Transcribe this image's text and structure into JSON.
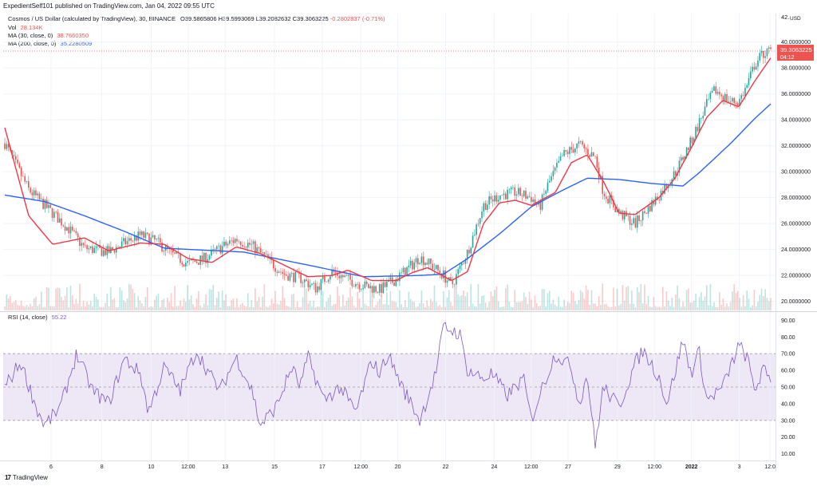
{
  "header": "ExpedientSelf101 published on TradingView.com, Jan 04, 2022 09:55 UTC",
  "legend": {
    "symbol": "Cosmos / US Dollar (calculated by TradingView), 30, BINANCE",
    "open": "O39.5865806",
    "high": "H39.5993069",
    "low": "L39.2082632",
    "close": "C39.3063225",
    "change": "-0.2802837 (-0.71%)",
    "vol_label": "Vol",
    "vol_value": "28.134K",
    "ma30_label": "MA (30, close, 0)",
    "ma30_value": "38.7660350",
    "ma200_label": "MA (200, close, 0)",
    "ma200_value": "35.2280509",
    "rsi_label": "RSI (14, close)",
    "rsi_value": "55.22"
  },
  "price_axis": {
    "currency": "USD",
    "top_label": "42.",
    "current_price": "39.3063225",
    "countdown": "04:12"
  },
  "brand": "TradingView",
  "colors": {
    "up": "#26a69a",
    "down": "#ef5350",
    "ma30": "#f23645",
    "ma200": "#2962ff",
    "rsi": "#7e57c2",
    "rsi_band": "#ede7f6"
  },
  "chart_data": [
    {
      "type": "candlestick",
      "title": "",
      "x_ticks": [
        "6",
        "8",
        "10",
        "12:00",
        "13",
        "15",
        "17",
        "12:00",
        "20",
        "22",
        "24",
        "12:00",
        "27",
        "29",
        "12:00",
        "2022",
        "3",
        "12:0"
      ],
      "y_ticks": [
        "40.0000000",
        "38.0000000",
        "36.0000000",
        "34.0000000",
        "32.0000000",
        "30.0000000",
        "28.0000000",
        "26.0000000",
        "24.0000000",
        "22.0000000",
        "20.0000000"
      ],
      "ylim": [
        19.3,
        42.2
      ],
      "price_keypoints": [
        [
          0,
          32.2
        ],
        [
          3,
          28.6
        ],
        [
          6,
          26.8
        ],
        [
          8,
          25.6
        ],
        [
          10,
          24.1
        ],
        [
          13,
          23.8
        ],
        [
          15,
          24.5
        ],
        [
          17,
          25.1
        ],
        [
          19,
          24.6
        ],
        [
          21,
          23.6
        ],
        [
          23,
          22.9
        ],
        [
          25,
          23.3
        ],
        [
          27,
          24.1
        ],
        [
          29,
          24.8
        ],
        [
          31,
          24.3
        ],
        [
          33,
          23.2
        ],
        [
          35,
          22.1
        ],
        [
          37,
          21.8
        ],
        [
          39,
          21.0
        ],
        [
          41,
          22.3
        ],
        [
          43,
          21.7
        ],
        [
          45,
          21.2
        ],
        [
          47,
          20.9
        ],
        [
          49,
          21.7
        ],
        [
          51,
          22.8
        ],
        [
          52,
          23.4
        ],
        [
          53,
          23.0
        ],
        [
          55,
          22.0
        ],
        [
          56,
          21.2
        ],
        [
          58,
          23.8
        ],
        [
          60,
          27.4
        ],
        [
          62,
          28.2
        ],
        [
          64,
          28.4
        ],
        [
          66,
          28.0
        ],
        [
          67,
          27.2
        ],
        [
          68,
          28.9
        ],
        [
          70,
          31.3
        ],
        [
          72,
          32.1
        ],
        [
          74,
          31.1
        ],
        [
          75,
          28.5
        ],
        [
          77,
          26.8
        ],
        [
          79,
          26.0
        ],
        [
          80,
          26.7
        ],
        [
          82,
          28.2
        ],
        [
          84,
          29.9
        ],
        [
          86,
          32.3
        ],
        [
          88,
          35.2
        ],
        [
          89,
          36.3
        ],
        [
          91,
          35.4
        ],
        [
          92,
          35.4
        ],
        [
          93,
          36.6
        ],
        [
          94,
          38.3
        ],
        [
          95,
          39.1
        ],
        [
          96,
          39.3
        ]
      ],
      "ma30_keypoints": [
        [
          0,
          33.4
        ],
        [
          3,
          26.6
        ],
        [
          6,
          24.4
        ],
        [
          10,
          24.9
        ],
        [
          13,
          23.9
        ],
        [
          17,
          24.5
        ],
        [
          20,
          24.4
        ],
        [
          23,
          23.3
        ],
        [
          26,
          23.0
        ],
        [
          29,
          24.2
        ],
        [
          32,
          23.7
        ],
        [
          35,
          22.8
        ],
        [
          38,
          21.9
        ],
        [
          41,
          22.0
        ],
        [
          43,
          22.4
        ],
        [
          46,
          21.6
        ],
        [
          49,
          21.6
        ],
        [
          51,
          22.2
        ],
        [
          53,
          22.6
        ],
        [
          56,
          21.6
        ],
        [
          58,
          22.3
        ],
        [
          60,
          26.0
        ],
        [
          62,
          27.6
        ],
        [
          64,
          27.8
        ],
        [
          66,
          27.4
        ],
        [
          69,
          28.4
        ],
        [
          71,
          30.7
        ],
        [
          73,
          31.3
        ],
        [
          75,
          29.3
        ],
        [
          77,
          26.8
        ],
        [
          79,
          26.7
        ],
        [
          82,
          28.0
        ],
        [
          84,
          29.5
        ],
        [
          86,
          31.8
        ],
        [
          88,
          34.2
        ],
        [
          90,
          35.5
        ],
        [
          92,
          35.0
        ],
        [
          94,
          37.0
        ],
        [
          96,
          38.77
        ]
      ],
      "ma200_keypoints": [
        [
          0,
          28.2
        ],
        [
          5,
          27.7
        ],
        [
          10,
          26.6
        ],
        [
          15,
          25.4
        ],
        [
          20,
          24.1
        ],
        [
          30,
          23.8
        ],
        [
          38,
          22.8
        ],
        [
          45,
          21.9
        ],
        [
          52,
          22.0
        ],
        [
          55,
          22.1
        ],
        [
          58,
          23.3
        ],
        [
          62,
          25.2
        ],
        [
          66,
          27.3
        ],
        [
          70,
          28.6
        ],
        [
          73,
          29.5
        ],
        [
          77,
          29.4
        ],
        [
          81,
          29.1
        ],
        [
          85,
          28.9
        ],
        [
          87,
          29.9
        ],
        [
          91,
          32.2
        ],
        [
          94,
          34.1
        ],
        [
          96,
          35.23
        ]
      ],
      "volume": "bars",
      "current_price": 39.3063225
    },
    {
      "type": "line",
      "title": "",
      "series": [
        {
          "name": "RSI (14, close)",
          "last": 55.22
        }
      ],
      "y_ticks": [
        "90.00",
        "80.00",
        "70.00",
        "60.00",
        "50.00",
        "40.00",
        "30.00",
        "20.00",
        "10.00"
      ],
      "ylim": [
        6,
        94
      ],
      "bands": [
        30,
        70
      ],
      "midline": 50,
      "rsi_keypoints": [
        [
          0,
          50
        ],
        [
          2,
          65
        ],
        [
          4,
          37
        ],
        [
          5,
          27
        ],
        [
          7,
          38
        ],
        [
          9,
          70
        ],
        [
          11,
          48
        ],
        [
          13,
          40
        ],
        [
          15,
          67
        ],
        [
          17,
          58
        ],
        [
          18,
          35
        ],
        [
          20,
          62
        ],
        [
          22,
          48
        ],
        [
          24,
          72
        ],
        [
          26,
          55
        ],
        [
          27,
          48
        ],
        [
          29,
          68
        ],
        [
          31,
          48
        ],
        [
          32,
          27
        ],
        [
          34,
          38
        ],
        [
          36,
          62
        ],
        [
          37,
          50
        ],
        [
          38,
          68
        ],
        [
          40,
          42
        ],
        [
          42,
          50
        ],
        [
          44,
          35
        ],
        [
          46,
          66
        ],
        [
          47,
          58
        ],
        [
          48,
          70
        ],
        [
          50,
          48
        ],
        [
          51,
          40
        ],
        [
          52,
          30
        ],
        [
          54,
          58
        ],
        [
          55,
          86
        ],
        [
          57,
          82
        ],
        [
          58,
          60
        ],
        [
          60,
          55
        ],
        [
          61,
          58
        ],
        [
          63,
          45
        ],
        [
          65,
          55
        ],
        [
          66,
          30
        ],
        [
          67,
          45
        ],
        [
          69,
          70
        ],
        [
          71,
          62
        ],
        [
          72,
          40
        ],
        [
          73,
          58
        ],
        [
          74,
          14
        ],
        [
          75,
          50
        ],
        [
          77,
          38
        ],
        [
          79,
          64
        ],
        [
          80,
          72
        ],
        [
          82,
          56
        ],
        [
          83,
          40
        ],
        [
          85,
          78
        ],
        [
          86,
          58
        ],
        [
          87,
          72
        ],
        [
          88,
          42
        ],
        [
          90,
          50
        ],
        [
          92,
          75
        ],
        [
          93,
          68
        ],
        [
          94,
          48
        ],
        [
          95,
          60
        ],
        [
          96,
          55
        ]
      ]
    }
  ]
}
